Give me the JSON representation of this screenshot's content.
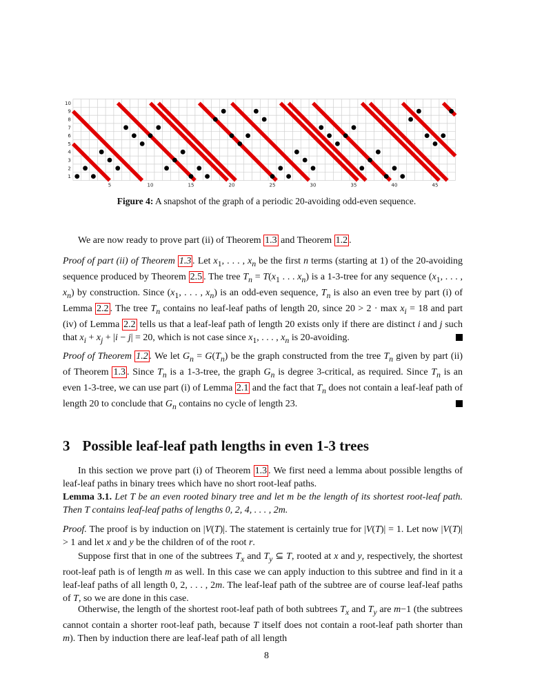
{
  "figure": {
    "caption_label": "Figure 4:",
    "caption_text": "A snapshot of the graph of a periodic 20-avoiding odd-even sequence.",
    "chart_data": {
      "type": "scatter",
      "title": "",
      "xlabel": "",
      "ylabel": "",
      "xlim": [
        0,
        47
      ],
      "ylim": [
        0,
        10
      ],
      "x_ticks": [
        5,
        10,
        15,
        20,
        25,
        30,
        35,
        40,
        45
      ],
      "y_ticks": [
        1,
        2,
        3,
        4,
        5,
        6,
        7,
        8,
        9,
        10
      ],
      "grid": true,
      "points": {
        "x": [
          1,
          2,
          3,
          4,
          5,
          6,
          7,
          8,
          9,
          10,
          11,
          12,
          13,
          14,
          15,
          16,
          17,
          18,
          19,
          20,
          21,
          22,
          23,
          24,
          25,
          26,
          27,
          28,
          29,
          30,
          31,
          32,
          33,
          34,
          35,
          36,
          37,
          38,
          39,
          40,
          41,
          42,
          43,
          44,
          45,
          46,
          47
        ],
        "y": [
          1,
          2,
          1,
          4,
          3,
          2,
          7,
          6,
          5,
          6,
          7,
          2,
          3,
          4,
          1,
          2,
          1,
          8,
          9,
          6,
          5,
          6,
          9,
          8,
          1,
          2,
          1,
          4,
          3,
          2,
          7,
          6,
          5,
          6,
          7,
          2,
          3,
          4,
          1,
          2,
          1,
          8,
          9,
          6,
          5,
          6,
          9
        ]
      },
      "forbidden_lines": {
        "color": "#e00000",
        "segments": [
          [
            [
              0.5,
              5
            ],
            [
              5,
              0.5
            ]
          ],
          [
            [
              0.5,
              9
            ],
            [
              9,
              0.5
            ]
          ],
          [
            [
              6,
              10
            ],
            [
              15.5,
              0.5
            ]
          ],
          [
            [
              10,
              10
            ],
            [
              19.5,
              0.5
            ]
          ],
          [
            [
              11,
              10
            ],
            [
              20.5,
              0.5
            ]
          ],
          [
            [
              16,
              10
            ],
            [
              25.5,
              0.5
            ]
          ],
          [
            [
              20,
              10
            ],
            [
              29.5,
              0.5
            ]
          ],
          [
            [
              26,
              10
            ],
            [
              35.5,
              0.5
            ]
          ],
          [
            [
              27,
              10
            ],
            [
              36.5,
              0.5
            ]
          ],
          [
            [
              30,
              10
            ],
            [
              39.5,
              0.5
            ]
          ],
          [
            [
              36,
              10
            ],
            [
              45.5,
              0.5
            ]
          ],
          [
            [
              37,
              10
            ],
            [
              46.5,
              0.5
            ]
          ],
          [
            [
              41,
              10
            ],
            [
              47.5,
              3.5
            ]
          ],
          [
            [
              46,
              10
            ],
            [
              47.5,
              8.5
            ]
          ]
        ]
      }
    }
  },
  "paragraphs": {
    "p1": "We are now ready to prove part (ii) of Theorem 1.3 and Theorem 1.2.",
    "p2": "Proof of part (ii) of Theorem 1.3. Let x1, . . . , xn be the first n terms (starting at 1) of the 20-avoiding sequence produced by Theorem 2.5. The tree Tn = T(x1 . . . xn) is a 1-3-tree for any sequence (x1, . . . , xn) by construction. Since (x1, . . . , xn) is an odd-even sequence, Tn is also an even tree by part (i) of Lemma 2.2. The tree Tn contains no leaf-leaf paths of length 20, since 20 > 2 · max xi = 18 and part (iv) of Lemma 2.2 tells us that a leaf-leaf path of length 20 exists only if there are distinct i and j such that xi + xj + |i − j| = 20, which is not case since x1, . . . , xn is 20-avoiding.",
    "p3": "Proof of Theorem 1.2. We let Gn = G(Tn) be the graph constructed from the tree Tn given by part (ii) of Theorem 1.3. Since Tn is a 1-3-tree, the graph Gn is degree 3-critical, as required. Since Tn is an even 1-3-tree, we can use part (i) of Lemma 2.1 and the fact that Tn does not contain a leaf-leaf path of length 20 to conclude that Gn contains no cycle of length 23.",
    "section_number": "3",
    "section_title": "Possible leaf-leaf path lengths in even 1-3 trees",
    "p4": "In this section we prove part (i) of Theorem 1.3. We first need a lemma about possible lengths of leaf-leaf paths in binary trees which have no short root-leaf paths.",
    "lemma_label": "Lemma 3.1.",
    "lemma_text": "Let T be an even rooted binary tree and let m be the length of its shortest root-leaf path. Then T contains leaf-leaf paths of lengths 0, 2, 4, . . . , 2m.",
    "p5": "Proof. The proof is by induction on |V(T)|. The statement is certainly true for |V(T)| = 1. Let now |V(T)| > 1 and let x and y be the children of of the root r.",
    "p6": "Suppose first that in one of the subtrees Tx and Ty ⊆ T, rooted at x and y, respectively, the shortest root-leaf path is of length m as well. In this case we can apply induction to this subtree and find in it a leaf-leaf paths of all length 0, 2, . . . , 2m. The leaf-leaf path of the subtree are of course leaf-leaf paths of T, so we are done in this case.",
    "p7": "Otherwise, the length of the shortest root-leaf path of both subtrees Tx and Ty are m−1 (the subtrees cannot contain a shorter root-leaf path, because T itself does not contain a root-leaf path shorter than m). Then by induction there are leaf-leaf path of all length"
  },
  "page_number": "8"
}
